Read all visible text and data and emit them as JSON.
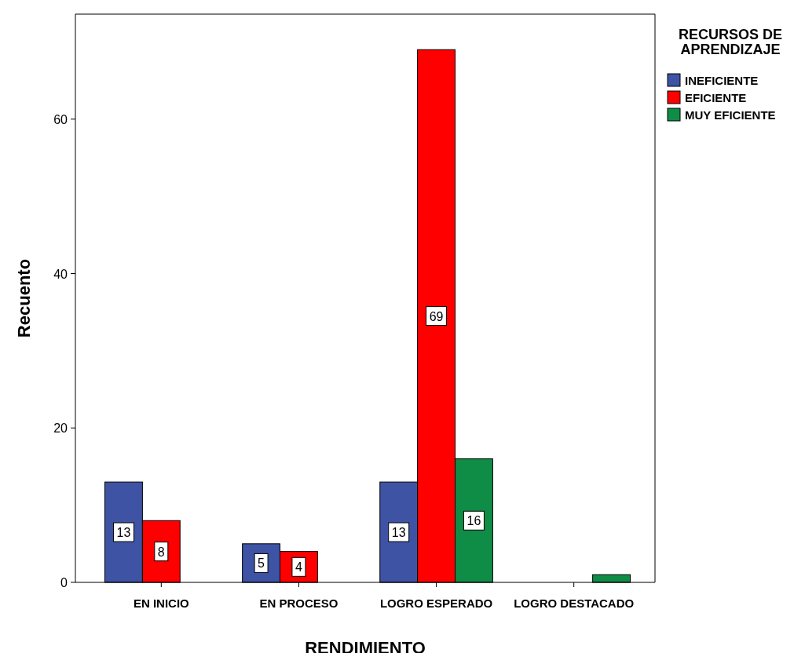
{
  "chart_data": {
    "type": "bar",
    "xlabel": "RENDIMIENTO",
    "ylabel": "Recuento",
    "legend_title": "RECURSOS DE APRENDIZAJE",
    "categories": [
      "EN INICIO",
      "EN PROCESO",
      "LOGRO ESPERADO",
      "LOGRO DESTACADO"
    ],
    "series": [
      {
        "name": "INEFICIENTE",
        "color": "#3e53a4",
        "values": [
          13,
          5,
          13,
          null
        ],
        "value_labels": [
          "13",
          "5",
          "13",
          null
        ]
      },
      {
        "name": "EFICIENTE",
        "color": "#ff0000",
        "values": [
          8,
          4,
          69,
          null
        ],
        "value_labels": [
          "8",
          "4",
          "69",
          null
        ]
      },
      {
        "name": "MUY EFICIENTE",
        "color": "#0f8c45",
        "values": [
          null,
          null,
          16,
          1
        ],
        "value_labels": [
          null,
          null,
          "16",
          null
        ]
      }
    ],
    "ylim": [
      0,
      73.6
    ],
    "yticks": [
      0,
      20,
      40,
      60
    ],
    "grid": false,
    "legend": "top right"
  }
}
